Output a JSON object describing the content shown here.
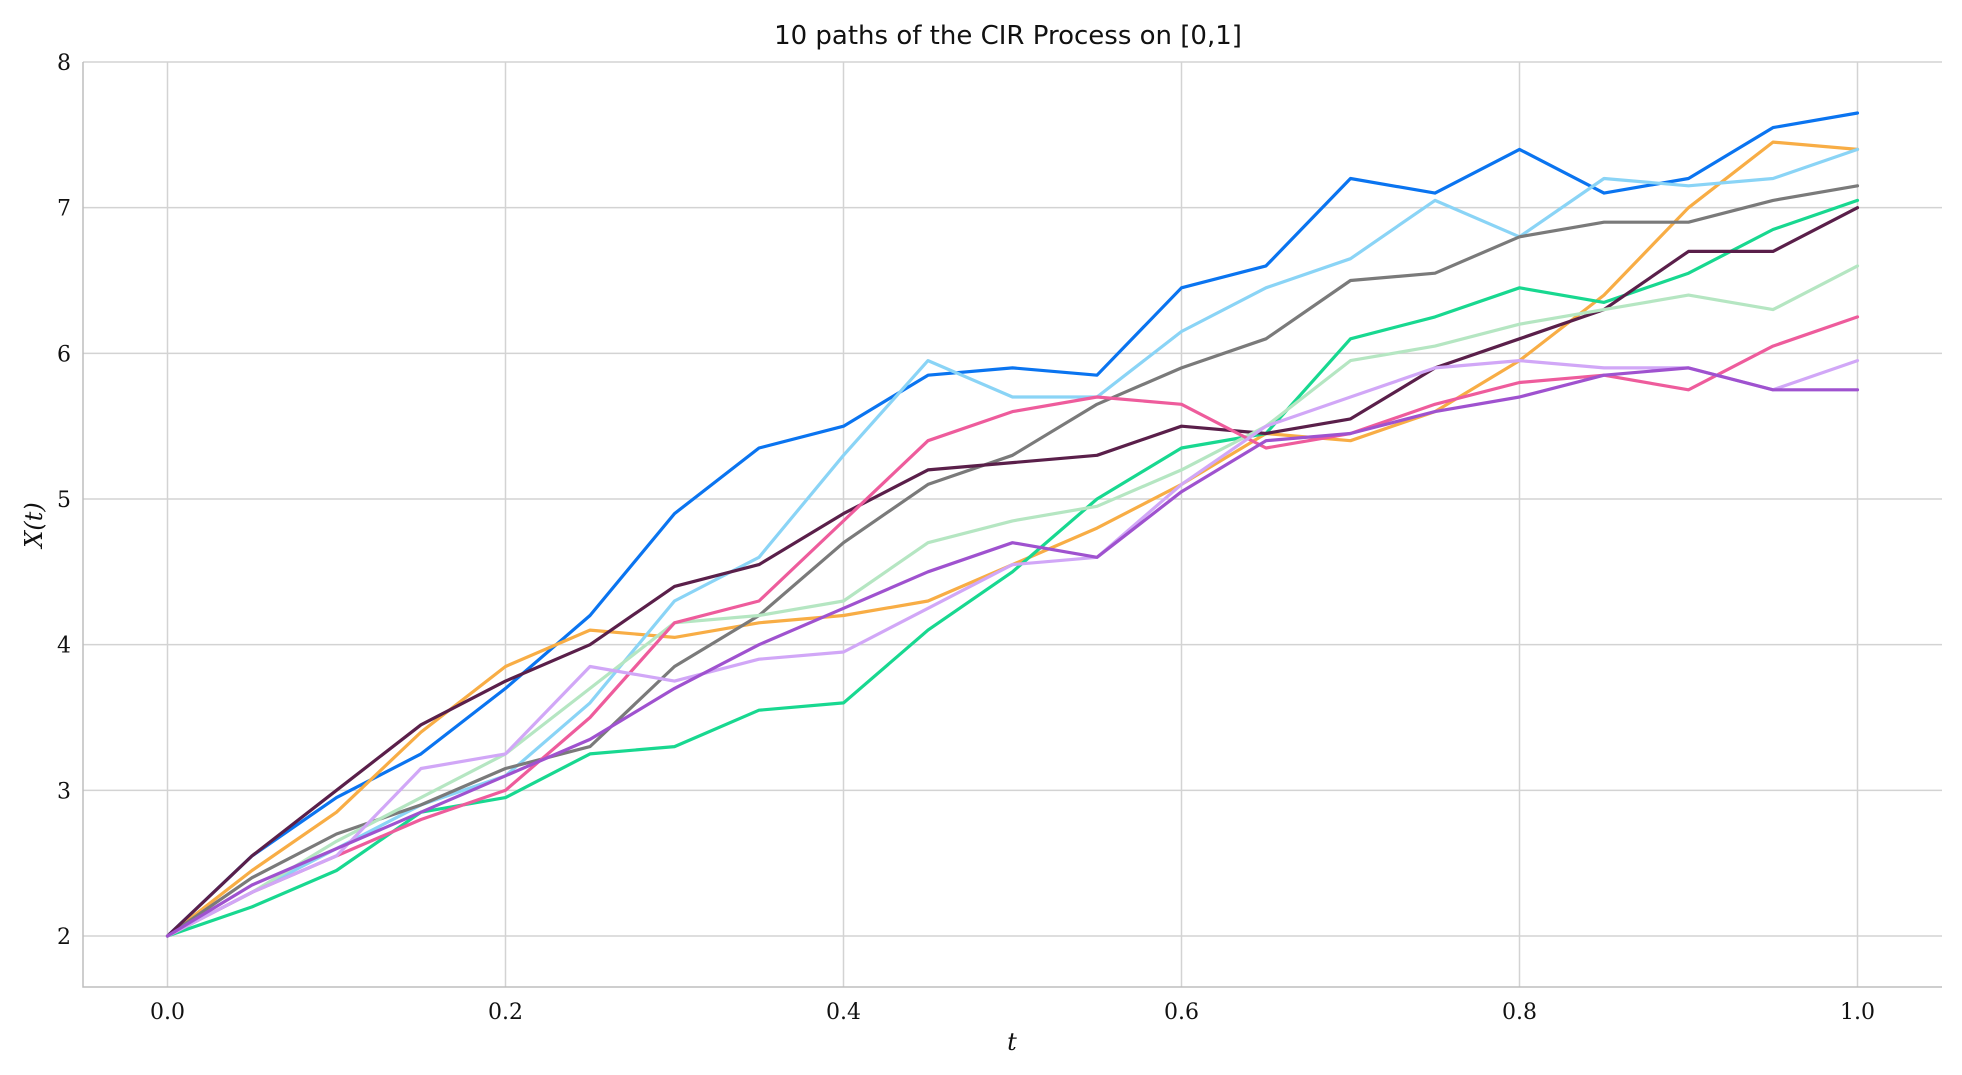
{
  "chart_data": {
    "type": "line",
    "title": "10 paths of the CIR Process on [0,1]",
    "xlabel": "t",
    "ylabel": "X(t)",
    "xlim": [
      -0.05,
      1.05
    ],
    "ylim": [
      1.65,
      8.0
    ],
    "xticks": [
      0.0,
      0.2,
      0.4,
      0.6,
      0.8,
      1.0
    ],
    "xtick_labels": [
      "0.0",
      "0.2",
      "0.4",
      "0.6",
      "0.8",
      "1.0"
    ],
    "yticks": [
      2,
      3,
      4,
      5,
      6,
      7,
      8
    ],
    "ytick_labels": [
      "2",
      "3",
      "4",
      "5",
      "6",
      "7",
      "8"
    ],
    "grid": true,
    "x": [
      0.0,
      0.05,
      0.1,
      0.15,
      0.2,
      0.25,
      0.3,
      0.35,
      0.4,
      0.45,
      0.5,
      0.55,
      0.6,
      0.65,
      0.7,
      0.75,
      0.8,
      0.85,
      0.9,
      0.95,
      1.0
    ],
    "series": [
      {
        "color": "#0a74f0",
        "values": [
          2.0,
          2.55,
          2.95,
          3.25,
          3.7,
          4.2,
          4.9,
          5.35,
          5.5,
          5.85,
          5.9,
          5.85,
          6.45,
          6.6,
          7.2,
          7.1,
          7.4,
          7.1,
          7.2,
          7.55,
          7.65
        ]
      },
      {
        "color": "#f8ad45",
        "values": [
          2.0,
          2.45,
          2.85,
          3.4,
          3.85,
          4.1,
          4.05,
          4.15,
          4.2,
          4.3,
          4.55,
          4.8,
          5.1,
          5.45,
          5.4,
          5.6,
          5.95,
          6.4,
          7.0,
          7.45,
          7.4
        ]
      },
      {
        "color": "#18d890",
        "values": [
          2.0,
          2.2,
          2.45,
          2.85,
          2.95,
          3.25,
          3.3,
          3.55,
          3.6,
          4.1,
          4.5,
          5.0,
          5.35,
          5.45,
          6.1,
          6.25,
          6.45,
          6.35,
          6.55,
          6.85,
          7.05
        ]
      },
      {
        "color": "#8ad4f6",
        "values": [
          2.0,
          2.3,
          2.6,
          2.9,
          3.1,
          3.6,
          4.3,
          4.6,
          5.3,
          5.95,
          5.7,
          5.7,
          6.15,
          6.45,
          6.65,
          7.05,
          6.8,
          7.2,
          7.15,
          7.2,
          7.4
        ]
      },
      {
        "color": "#7a7a7a",
        "values": [
          2.0,
          2.4,
          2.7,
          2.9,
          3.15,
          3.3,
          3.85,
          4.2,
          4.7,
          5.1,
          5.3,
          5.65,
          5.9,
          6.1,
          6.5,
          6.55,
          6.8,
          6.9,
          6.9,
          7.05,
          7.15
        ]
      },
      {
        "color": "#5a1f4a",
        "values": [
          2.0,
          2.55,
          3.0,
          3.45,
          3.75,
          4.0,
          4.4,
          4.55,
          4.9,
          5.2,
          5.25,
          5.3,
          5.5,
          5.45,
          5.55,
          5.9,
          6.1,
          6.3,
          6.7,
          6.7,
          7.0
        ]
      },
      {
        "color": "#b5e6c2",
        "values": [
          2.0,
          2.3,
          2.65,
          2.95,
          3.25,
          3.7,
          4.15,
          4.2,
          4.3,
          4.7,
          4.85,
          4.95,
          5.2,
          5.5,
          5.95,
          6.05,
          6.2,
          6.3,
          6.4,
          6.3,
          6.6
        ]
      },
      {
        "color": "#ee5c9c",
        "values": [
          2.0,
          2.3,
          2.55,
          2.8,
          3.0,
          3.5,
          4.15,
          4.3,
          4.85,
          5.4,
          5.6,
          5.7,
          5.65,
          5.35,
          5.45,
          5.65,
          5.8,
          5.85,
          5.75,
          6.05,
          6.25
        ]
      },
      {
        "color": "#d1a7f7",
        "values": [
          2.0,
          2.3,
          2.55,
          3.15,
          3.25,
          3.85,
          3.75,
          3.9,
          3.95,
          4.25,
          4.55,
          4.6,
          5.1,
          5.5,
          5.7,
          5.9,
          5.95,
          5.9,
          5.9,
          5.75,
          5.95
        ]
      },
      {
        "color": "#9f52cf",
        "values": [
          2.0,
          2.35,
          2.6,
          2.85,
          3.1,
          3.35,
          3.7,
          4.0,
          4.25,
          4.5,
          4.7,
          4.6,
          5.05,
          5.4,
          5.45,
          5.6,
          5.7,
          5.85,
          5.9,
          5.75,
          5.75
        ]
      }
    ]
  }
}
